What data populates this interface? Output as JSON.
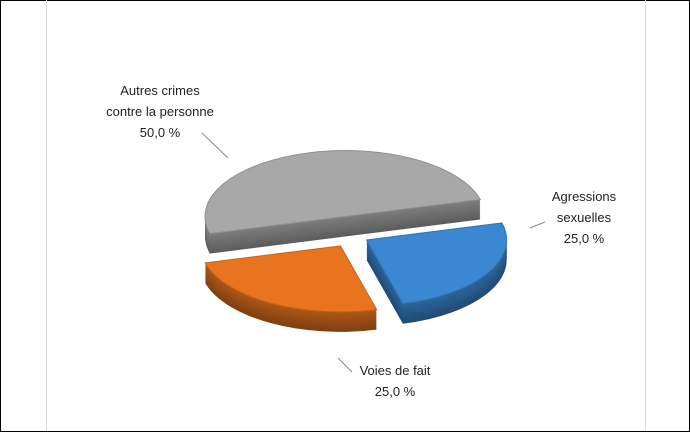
{
  "chart_data": {
    "type": "pie",
    "categories": [
      "Agressions sexuelles",
      "Voies de fait",
      "Autres crimes contre la personne"
    ],
    "values": [
      25,
      25,
      50
    ],
    "value_labels": [
      "25,0 %",
      "25,0 %",
      "50,0 %"
    ],
    "colors": [
      "#3b87d2",
      "#e8741f",
      "#a8a8a8"
    ]
  }
}
